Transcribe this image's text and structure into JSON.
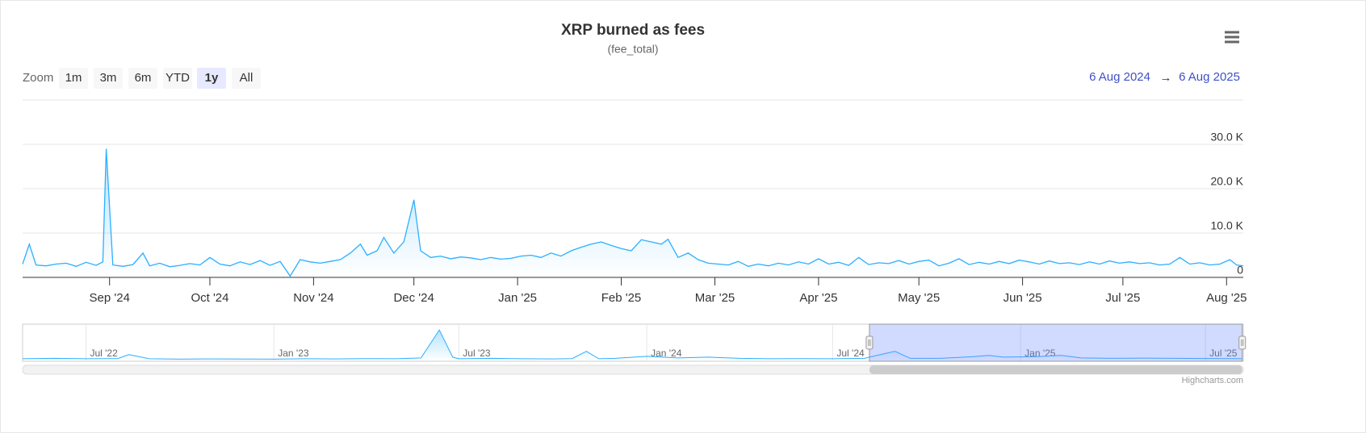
{
  "chart_data": {
    "type": "area",
    "title": "XRP burned as fees",
    "subtitle": "(fee_total)",
    "color": "#2caffe",
    "grid": true,
    "x": [
      "2024-08-06",
      "2024-08-08",
      "2024-08-10",
      "2024-08-13",
      "2024-08-16",
      "2024-08-19",
      "2024-08-22",
      "2024-08-25",
      "2024-08-28",
      "2024-08-30",
      "2024-08-31",
      "2024-09-02",
      "2024-09-05",
      "2024-09-08",
      "2024-09-11",
      "2024-09-13",
      "2024-09-16",
      "2024-09-19",
      "2024-09-22",
      "2024-09-25",
      "2024-09-28",
      "2024-10-01",
      "2024-10-04",
      "2024-10-07",
      "2024-10-10",
      "2024-10-13",
      "2024-10-16",
      "2024-10-19",
      "2024-10-22",
      "2024-10-25",
      "2024-10-28",
      "2024-10-31",
      "2024-11-03",
      "2024-11-06",
      "2024-11-09",
      "2024-11-12",
      "2024-11-15",
      "2024-11-17",
      "2024-11-20",
      "2024-11-22",
      "2024-11-25",
      "2024-11-28",
      "2024-12-01",
      "2024-12-03",
      "2024-12-06",
      "2024-12-09",
      "2024-12-12",
      "2024-12-15",
      "2024-12-18",
      "2024-12-21",
      "2024-12-24",
      "2024-12-27",
      "2024-12-30",
      "2025-01-02",
      "2025-01-05",
      "2025-01-08",
      "2025-01-11",
      "2025-01-14",
      "2025-01-17",
      "2025-01-20",
      "2025-01-23",
      "2025-01-26",
      "2025-01-29",
      "2025-02-01",
      "2025-02-04",
      "2025-02-07",
      "2025-02-10",
      "2025-02-13",
      "2025-02-15",
      "2025-02-18",
      "2025-02-21",
      "2025-02-24",
      "2025-02-27",
      "2025-03-02",
      "2025-03-05",
      "2025-03-08",
      "2025-03-11",
      "2025-03-14",
      "2025-03-17",
      "2025-03-20",
      "2025-03-23",
      "2025-03-26",
      "2025-03-29",
      "2025-04-01",
      "2025-04-04",
      "2025-04-07",
      "2025-04-10",
      "2025-04-13",
      "2025-04-16",
      "2025-04-19",
      "2025-04-22",
      "2025-04-25",
      "2025-04-28",
      "2025-05-01",
      "2025-05-04",
      "2025-05-07",
      "2025-05-10",
      "2025-05-13",
      "2025-05-16",
      "2025-05-19",
      "2025-05-22",
      "2025-05-25",
      "2025-05-28",
      "2025-05-31",
      "2025-06-03",
      "2025-06-06",
      "2025-06-09",
      "2025-06-12",
      "2025-06-15",
      "2025-06-18",
      "2025-06-21",
      "2025-06-24",
      "2025-06-27",
      "2025-06-30",
      "2025-07-03",
      "2025-07-06",
      "2025-07-09",
      "2025-07-12",
      "2025-07-15",
      "2025-07-18",
      "2025-07-21",
      "2025-07-24",
      "2025-07-27",
      "2025-07-30",
      "2025-08-02",
      "2025-08-04",
      "2025-08-06"
    ],
    "values": [
      3000,
      7500,
      2800,
      2600,
      3000,
      3200,
      2500,
      3400,
      2700,
      3500,
      29000,
      2800,
      2500,
      2900,
      5500,
      2600,
      3200,
      2400,
      2700,
      3100,
      2800,
      4500,
      3000,
      2600,
      3500,
      2900,
      3800,
      2700,
      3600,
      300,
      4000,
      3500,
      3200,
      3600,
      4000,
      5500,
      7500,
      5000,
      6000,
      9000,
      5500,
      8000,
      17500,
      6000,
      4500,
      4800,
      4200,
      4600,
      4400,
      4000,
      4500,
      4100,
      4300,
      4800,
      5000,
      4500,
      5500,
      4800,
      6000,
      6800,
      7500,
      8000,
      7200,
      6500,
      6000,
      8500,
      8000,
      7500,
      8600,
      4500,
      5500,
      4000,
      3200,
      3000,
      2800,
      3600,
      2500,
      3000,
      2600,
      3200,
      2800,
      3500,
      3000,
      4200,
      3000,
      3400,
      2700,
      4500,
      2900,
      3300,
      3100,
      3800,
      3000,
      3600,
      3900,
      2600,
      3200,
      4200,
      2900,
      3400,
      3000,
      3600,
      3100,
      3900,
      3500,
      3000,
      3700,
      3100,
      3300,
      2900,
      3500,
      3000,
      3700,
      3200,
      3500,
      3100,
      3300,
      2800,
      3000,
      4500,
      3000,
      3300,
      2800,
      3000,
      4000,
      2800,
      2600
    ],
    "xlim": [
      "2024-08-06",
      "2025-08-06"
    ],
    "xticks": [
      {
        "value": "2024-09-01",
        "label": "Sep '24"
      },
      {
        "value": "2024-10-01",
        "label": "Oct '24"
      },
      {
        "value": "2024-11-01",
        "label": "Nov '24"
      },
      {
        "value": "2024-12-01",
        "label": "Dec '24"
      },
      {
        "value": "2025-01-01",
        "label": "Jan '25"
      },
      {
        "value": "2025-02-01",
        "label": "Feb '25"
      },
      {
        "value": "2025-03-01",
        "label": "Mar '25"
      },
      {
        "value": "2025-04-01",
        "label": "Apr '25"
      },
      {
        "value": "2025-05-01",
        "label": "May '25"
      },
      {
        "value": "2025-06-01",
        "label": "Jun '25"
      },
      {
        "value": "2025-07-01",
        "label": "Jul '25"
      },
      {
        "value": "2025-08-01",
        "label": "Aug '25"
      }
    ],
    "ylim": [
      0,
      40000
    ],
    "yticks": [
      0,
      {
        "value": 10000,
        "label": "10.0 K"
      },
      {
        "value": 20000,
        "label": "20.0 K"
      },
      {
        "value": 30000,
        "label": "30.0 K"
      }
    ],
    "navigator": {
      "x": [
        "2022-04-30",
        "2022-06-01",
        "2022-07-01",
        "2022-08-01",
        "2022-08-12",
        "2022-09-01",
        "2022-10-01",
        "2022-11-01",
        "2022-12-01",
        "2023-01-01",
        "2023-02-01",
        "2023-03-01",
        "2023-04-01",
        "2023-05-01",
        "2023-05-25",
        "2023-06-12",
        "2023-06-25",
        "2023-07-01",
        "2023-08-01",
        "2023-09-01",
        "2023-10-01",
        "2023-10-20",
        "2023-11-03",
        "2023-11-15",
        "2023-12-01",
        "2024-01-01",
        "2024-02-01",
        "2024-03-01",
        "2024-04-01",
        "2024-05-01",
        "2024-06-01",
        "2024-07-01",
        "2024-08-01",
        "2024-08-31",
        "2024-09-15",
        "2024-10-15",
        "2024-11-15",
        "2024-12-01",
        "2024-12-15",
        "2025-01-15",
        "2025-02-10",
        "2025-03-01",
        "2025-04-01",
        "2025-05-01",
        "2025-06-01",
        "2025-07-01",
        "2025-08-06"
      ],
      "values": [
        3000,
        3500,
        3000,
        3200,
        8000,
        3000,
        2500,
        2800,
        2600,
        2500,
        3000,
        2800,
        3200,
        3000,
        4000,
        38000,
        5000,
        3000,
        3500,
        3000,
        2800,
        3200,
        12000,
        3000,
        3500,
        6000,
        4000,
        5000,
        3500,
        3000,
        3200,
        3000,
        3500,
        12000,
        3500,
        3500,
        5500,
        7000,
        5000,
        5500,
        7000,
        4000,
        3500,
        3800,
        3500,
        3300,
        3000
      ],
      "xlim": [
        "2022-04-30",
        "2025-08-07"
      ],
      "ylim": [
        0,
        45000
      ],
      "xticks": [
        {
          "value": "2022-07-01",
          "label": "Jul '22"
        },
        {
          "value": "2023-01-01",
          "label": "Jan '23"
        },
        {
          "value": "2023-07-01",
          "label": "Jul '23"
        },
        {
          "value": "2024-01-01",
          "label": "Jan '24"
        },
        {
          "value": "2024-07-01",
          "label": "Jul '24"
        },
        {
          "value": "2025-01-01",
          "label": "Jan '25"
        },
        {
          "value": "2025-07-01",
          "label": "Jul '25"
        }
      ]
    }
  },
  "zoom": {
    "label": "Zoom",
    "buttons": [
      "1m",
      "3m",
      "6m",
      "YTD",
      "1y",
      "All"
    ],
    "selected": "1y"
  },
  "range": {
    "from": "6 Aug 2024",
    "separator": "→",
    "to": "6 Aug 2025"
  },
  "credits": "Highcharts.com"
}
